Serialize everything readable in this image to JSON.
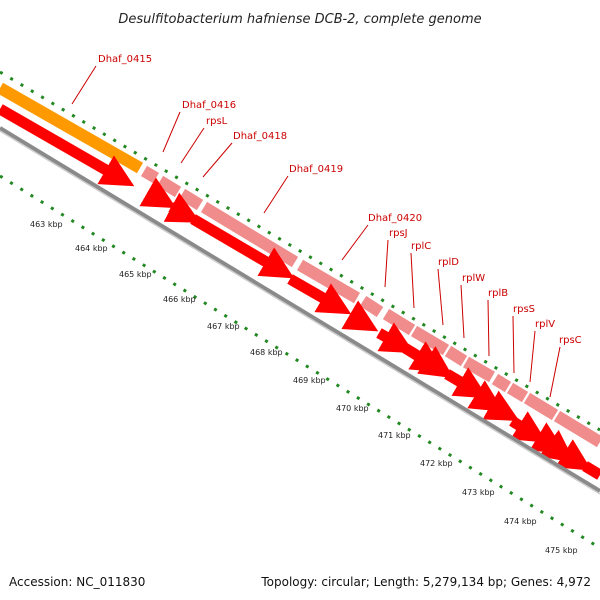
{
  "title": "Desulfitobacterium hafniense DCB-2, complete genome",
  "footer": {
    "accession": "Accession: NC_011830",
    "summary": "Topology: circular; Length: 5,279,134 bp; Genes: 4,972"
  },
  "colors": {
    "orange_gene": "#ff9900",
    "cds": "#ff0000",
    "feature": "#f08c8c",
    "backbone": "#777777",
    "ticks": "#228822",
    "label": "#cc0000"
  },
  "axis_labels": [
    "463 kbp",
    "464 kbp",
    "465 kbp",
    "466 kbp",
    "467 kbp",
    "468 kbp",
    "469 kbp",
    "470 kbp",
    "471 kbp",
    "472 kbp",
    "473 kbp",
    "474 kbp",
    "475 kbp"
  ],
  "gene_labels": [
    "Dhaf_0415",
    "Dhaf_0416",
    "rpsL",
    "Dhaf_0418",
    "Dhaf_0419",
    "Dhaf_0420",
    "rpsJ",
    "rplC",
    "rplD",
    "rplW",
    "rplB",
    "rpsS",
    "rplV",
    "rpsC"
  ]
}
